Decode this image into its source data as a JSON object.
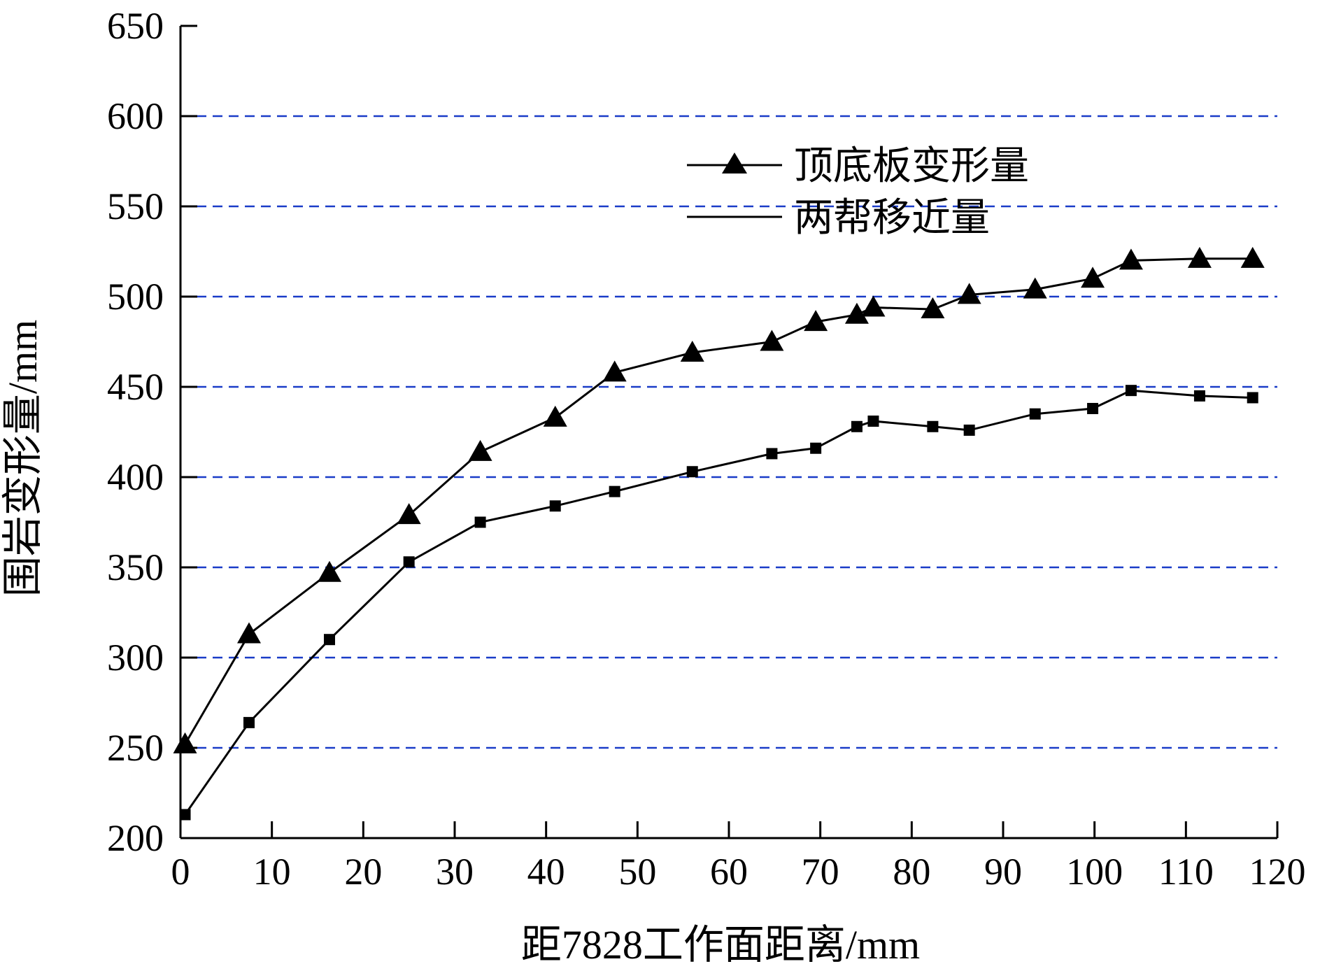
{
  "chart_data": {
    "type": "line",
    "title": "",
    "xlabel": "距7828工作面距离/mm",
    "ylabel": "围岩变形量/mm",
    "xlim": [
      0,
      120
    ],
    "ylim": [
      200,
      650
    ],
    "x_ticks": [
      0,
      10,
      20,
      30,
      40,
      50,
      60,
      70,
      80,
      90,
      100,
      110,
      120
    ],
    "y_ticks": [
      200,
      250,
      300,
      350,
      400,
      450,
      500,
      550,
      600,
      650
    ],
    "x_tick_labels": [
      "0",
      "10",
      "20",
      "30",
      "40",
      "50",
      "60",
      "70",
      "80",
      "90",
      "100",
      "110",
      "120"
    ],
    "y_tick_labels": [
      "200",
      "250",
      "300",
      "350",
      "400",
      "450",
      "500",
      "550",
      "600",
      "650"
    ],
    "grid": "horizontal-dashed",
    "grid_color": "#1a3cc8",
    "legend_position": "top-right",
    "series": [
      {
        "name": "顶底板变形量",
        "marker": "triangle",
        "color": "#000000",
        "x": [
          0.5,
          7.5,
          16.3,
          25.0,
          32.8,
          41.0,
          47.5,
          56.0,
          64.7,
          69.5,
          74.0,
          75.8,
          82.3,
          86.3,
          93.5,
          99.8,
          104.0,
          111.5,
          117.3
        ],
        "y": [
          252,
          313,
          347,
          379,
          414,
          433,
          458,
          469,
          475,
          486,
          490,
          494,
          493,
          501,
          504,
          510,
          520,
          521,
          521
        ]
      },
      {
        "name": "两帮移近量",
        "marker": "square",
        "color": "#000000",
        "x": [
          0.5,
          7.5,
          16.3,
          25.0,
          32.8,
          41.0,
          47.5,
          56.0,
          64.7,
          69.5,
          74.0,
          75.8,
          82.3,
          86.3,
          93.5,
          99.8,
          104.0,
          111.5,
          117.3
        ],
        "y": [
          213,
          264,
          310,
          353,
          375,
          384,
          392,
          403,
          413,
          416,
          428,
          431,
          428,
          426,
          435,
          438,
          448,
          445,
          444
        ]
      }
    ]
  }
}
